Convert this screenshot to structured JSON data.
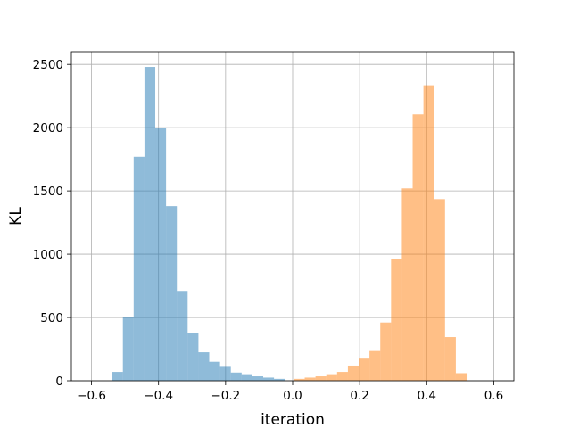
{
  "chart_data": {
    "type": "bar",
    "title": "",
    "xlabel": "iteration",
    "ylabel": "KL",
    "xlim": [
      -0.66,
      0.66
    ],
    "ylim": [
      0,
      2600
    ],
    "xticks": [
      -0.6,
      -0.4,
      -0.2,
      0.0,
      0.2,
      0.4,
      0.6
    ],
    "xtick_labels": [
      "−0.6",
      "−0.4",
      "−0.2",
      "0.0",
      "0.2",
      "0.4",
      "0.6"
    ],
    "yticks": [
      0,
      500,
      1000,
      1500,
      2000,
      2500
    ],
    "ytick_labels": [
      "0",
      "500",
      "1000",
      "1500",
      "2000",
      "2500"
    ],
    "grid": true,
    "legend": "none",
    "bin_width": 0.0322,
    "series": [
      {
        "color": "#1f77b4",
        "opacity": 0.5,
        "bin_starts": [
          -0.5386,
          -0.5064,
          -0.4742,
          -0.442,
          -0.4098,
          -0.3776,
          -0.3454,
          -0.3132,
          -0.281,
          -0.2488,
          -0.2166,
          -0.1844,
          -0.1522,
          -0.12,
          -0.0878,
          -0.0556
        ],
        "counts": [
          70,
          505,
          1770,
          2480,
          1995,
          1380,
          710,
          380,
          225,
          150,
          110,
          65,
          45,
          35,
          25,
          15
        ]
      },
      {
        "color": "#ff7f0e",
        "opacity": 0.5,
        "bin_starts": [
          0.0038,
          0.036,
          0.0682,
          0.1004,
          0.1326,
          0.1648,
          0.197,
          0.2292,
          0.2614,
          0.2936,
          0.3258,
          0.358,
          0.3902,
          0.4224,
          0.4546,
          0.4868
        ],
        "counts": [
          15,
          25,
          35,
          45,
          70,
          120,
          175,
          235,
          460,
          965,
          1520,
          2105,
          2335,
          1435,
          345,
          60
        ]
      }
    ]
  }
}
